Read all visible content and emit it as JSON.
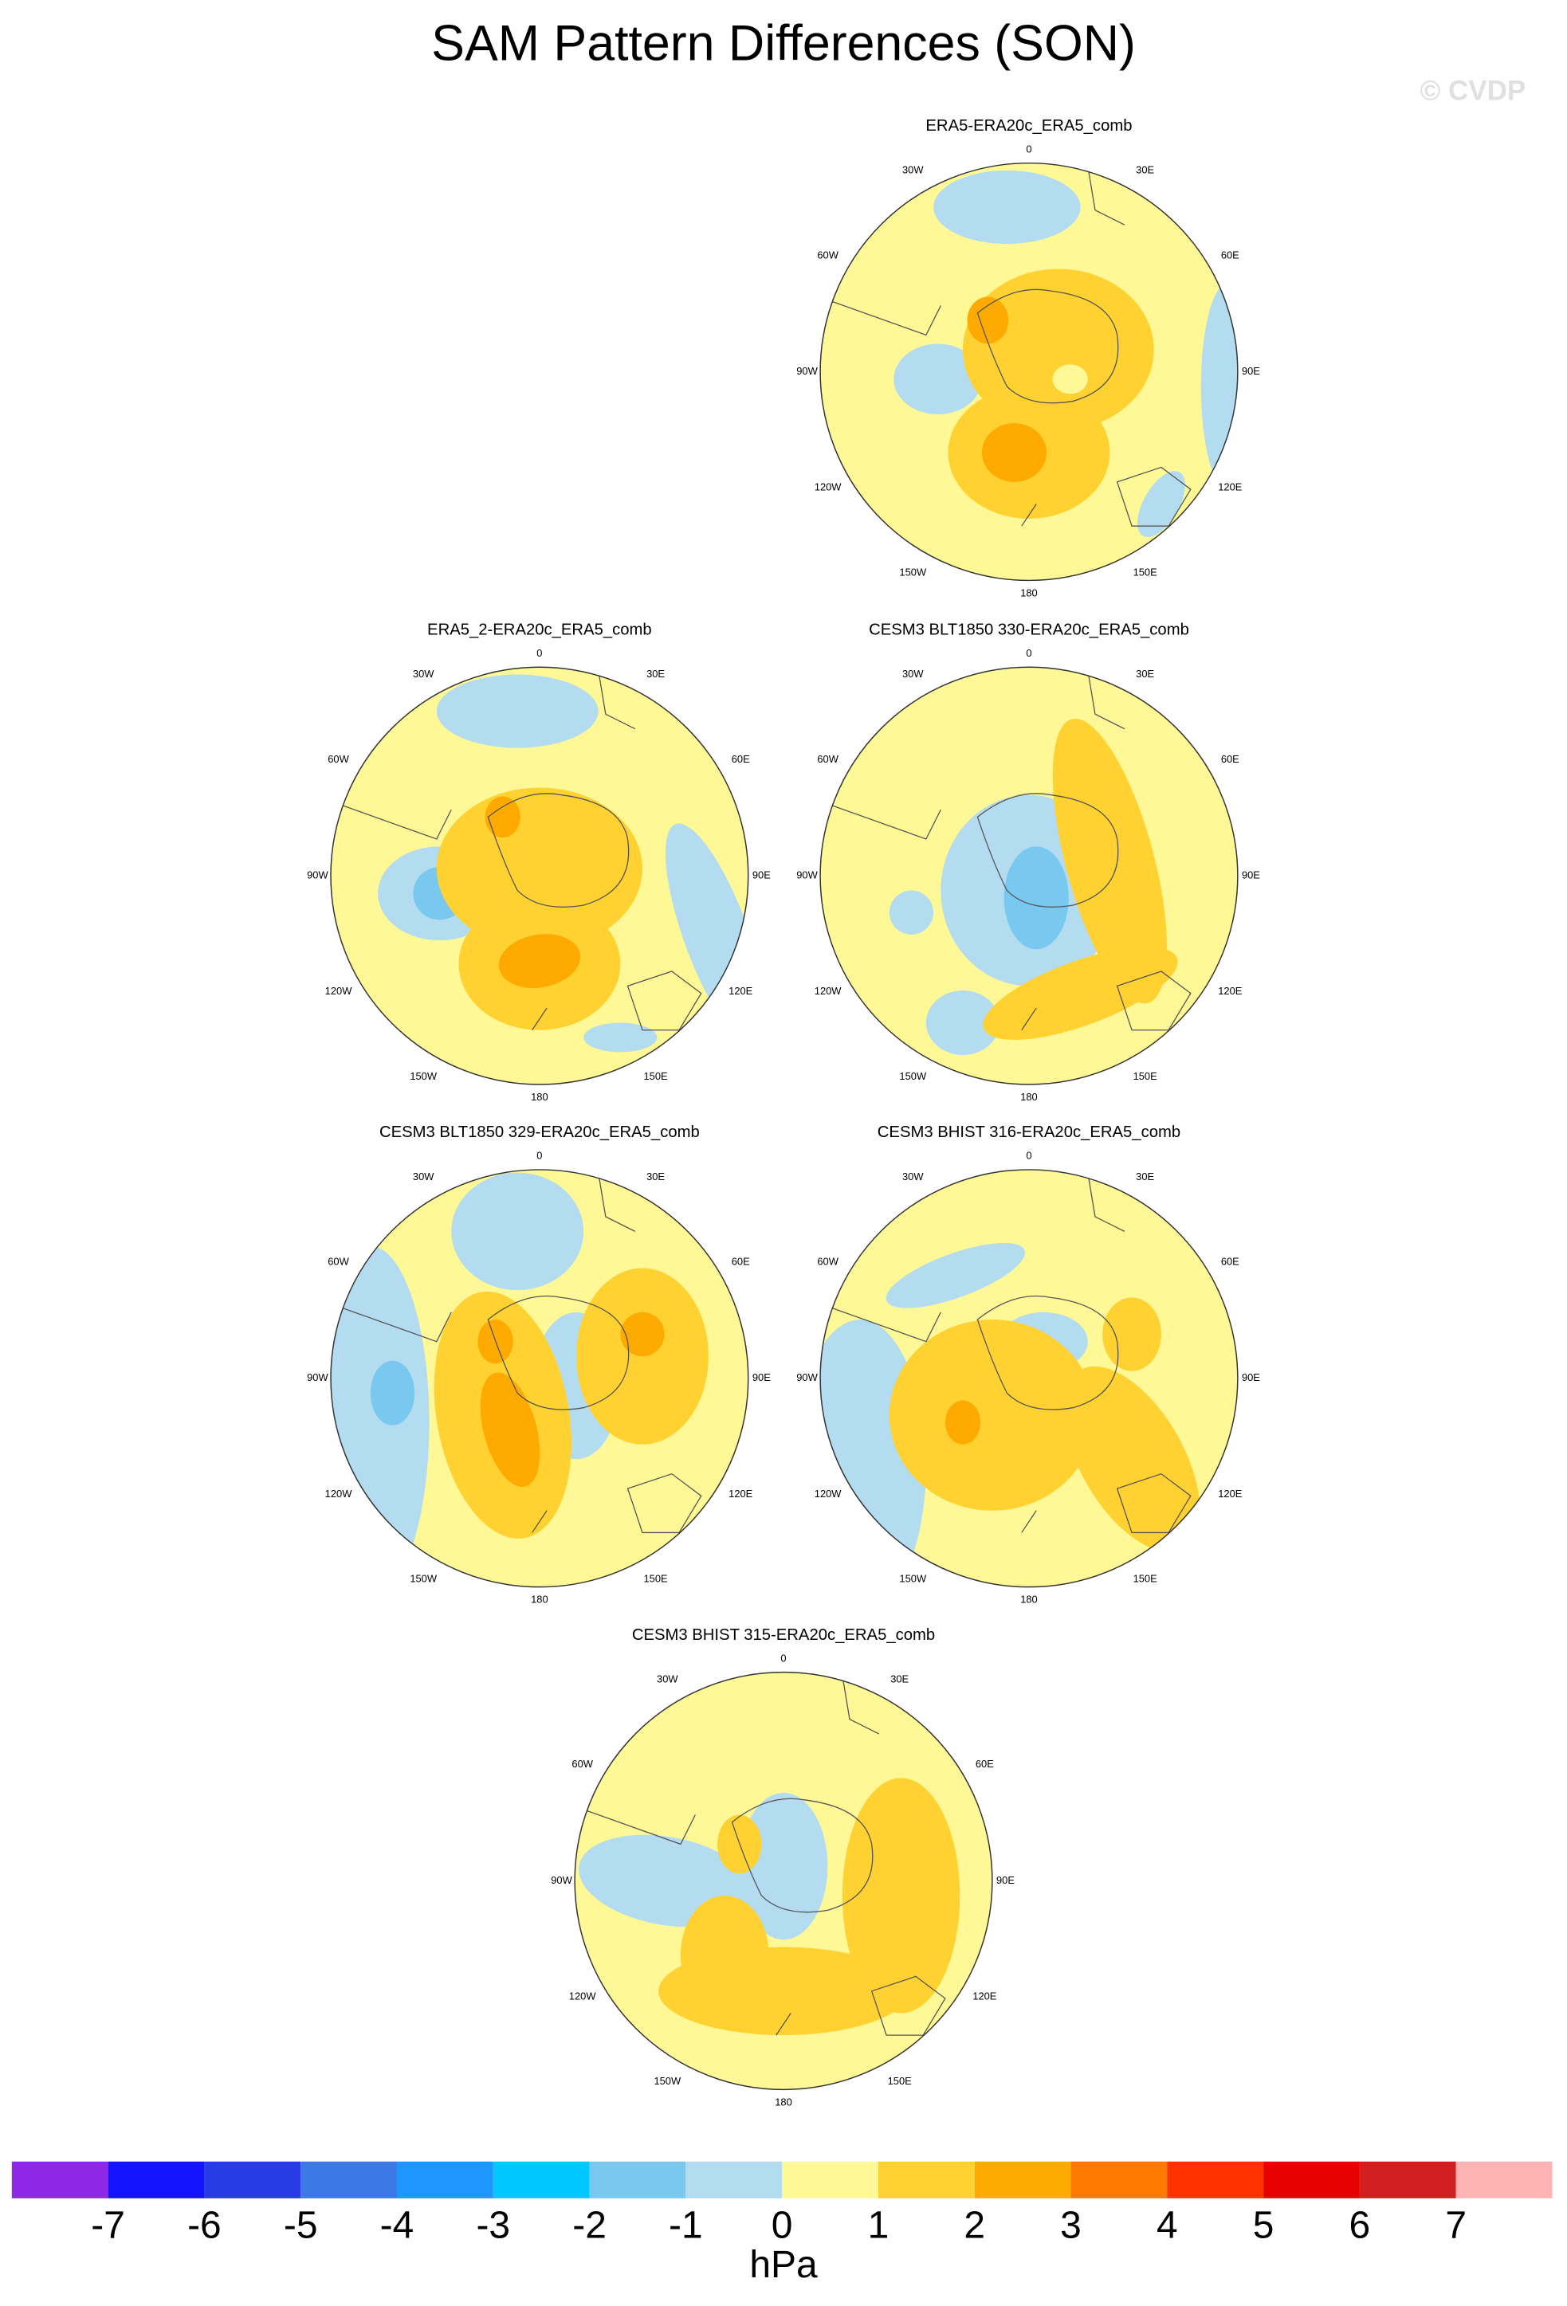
{
  "title": "SAM Pattern Differences (SON)",
  "watermark": "© CVDP",
  "panels": [
    {
      "title": "ERA5-ERA20c_ERA5_comb"
    },
    {
      "title": "ERA5_2-ERA20c_ERA5_comb"
    },
    {
      "title": "CESM3 BLT1850 330-ERA20c_ERA5_comb"
    },
    {
      "title": "CESM3 BLT1850 329-ERA20c_ERA5_comb"
    },
    {
      "title": "CESM3 BHIST 316-ERA20c_ERA5_comb"
    },
    {
      "title": "CESM3 BHIST 315-ERA20c_ERA5_comb"
    }
  ],
  "lon_labels": [
    "0",
    "30E",
    "60E",
    "90E",
    "120E",
    "150E",
    "180",
    "150W",
    "120W",
    "90W",
    "60W",
    "30W"
  ],
  "colorbar": {
    "colors": [
      "#8c28e6",
      "#1414ff",
      "#283ce6",
      "#3c78e6",
      "#1e96ff",
      "#00c8ff",
      "#78c8f0",
      "#b4dcf0",
      "#fff896",
      "#ffd232",
      "#ffaa00",
      "#ff7800",
      "#ff3200",
      "#e60000",
      "#d21e1e",
      "#ffb4b4"
    ],
    "ticks": [
      -7,
      -6,
      -5,
      -4,
      -3,
      -2,
      -1,
      0,
      1,
      2,
      3,
      4,
      5,
      6,
      7
    ],
    "unit": "hPa"
  }
}
